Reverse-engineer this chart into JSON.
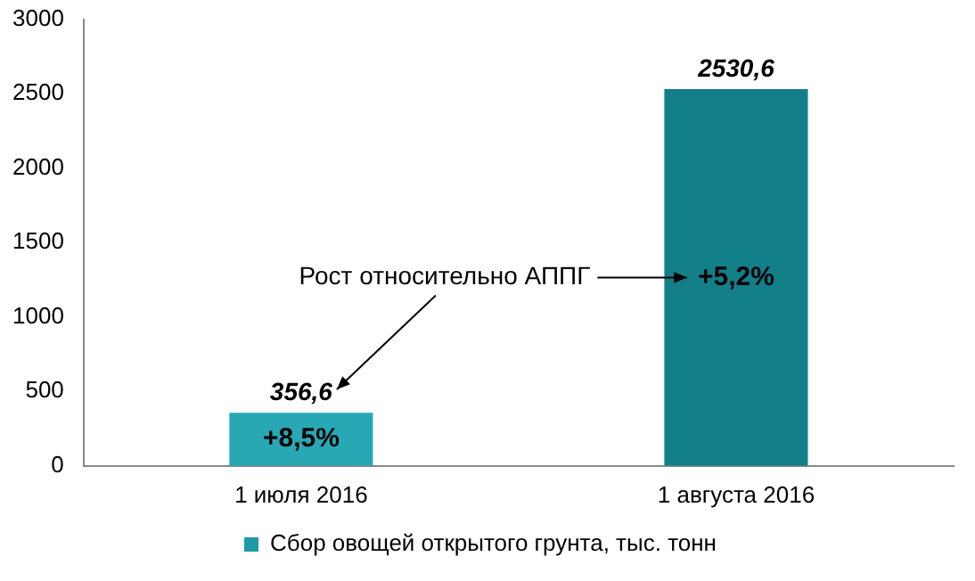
{
  "chart_data": {
    "type": "bar",
    "categories": [
      "1 июля 2016",
      "1 августа 2016"
    ],
    "series": [
      {
        "name": "Сбор овощей открытого грунта, тыс. тонн",
        "color": "#1d9aa6",
        "colors": [
          "#27a8b4",
          "#127f89"
        ],
        "values": [
          356.6,
          2530.6
        ],
        "value_labels": [
          "356,6",
          "2530,6"
        ]
      }
    ],
    "ylim": [
      0,
      3000
    ],
    "yticks": [
      0,
      500,
      1000,
      1500,
      2000,
      2500,
      3000
    ],
    "grid": false,
    "legend": "bottom",
    "annotations": [
      "+8,5%",
      "+5,2%",
      "Рост относительно АППГ"
    ]
  }
}
